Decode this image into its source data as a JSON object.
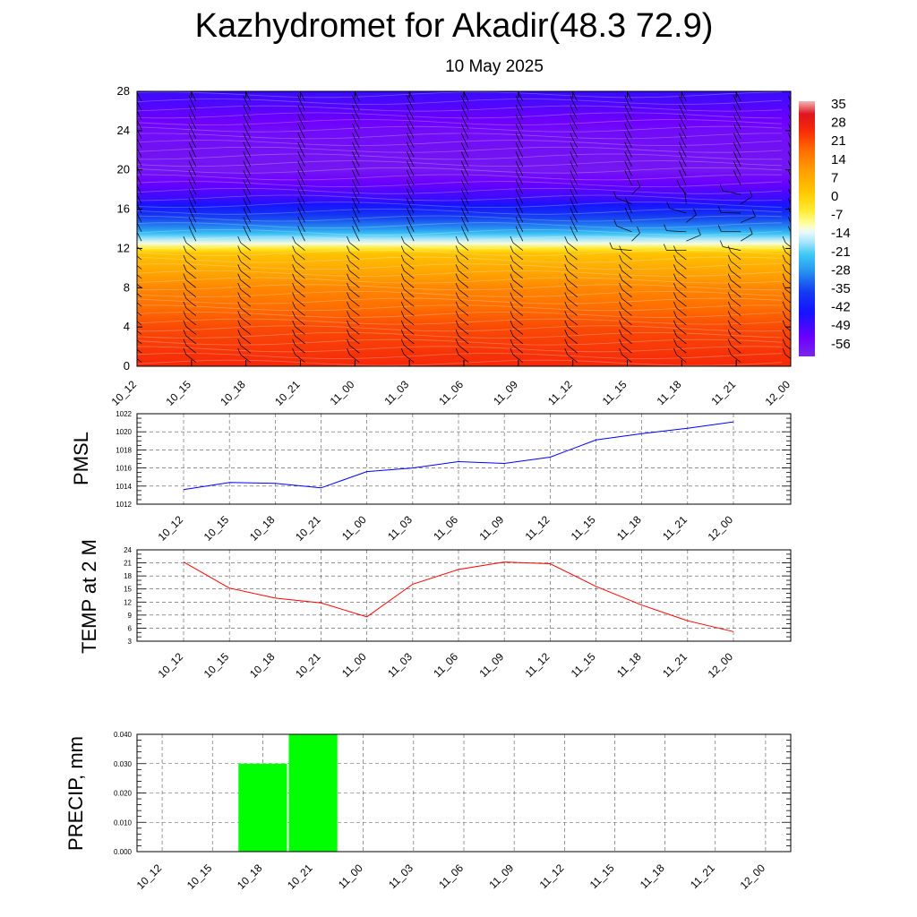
{
  "header": {
    "title": "Kazhydromet for Akadir(48.3 72.9)",
    "subtitle": "10 May 2025"
  },
  "colors": {
    "pmsl_line": "#0000ff",
    "temp_line": "#ff0000",
    "precip_bar": "#00ff00",
    "grid": "#555555"
  },
  "chart_data": [
    {
      "type": "heatmap",
      "title": "",
      "x_tick_labels": [
        "10_12",
        "10_15",
        "10_18",
        "10_21",
        "11_00",
        "11_03",
        "11_06",
        "11_09",
        "11_12",
        "11_15",
        "11_18",
        "11_21",
        "12_00"
      ],
      "y_tick_labels": [
        "0",
        "4",
        "8",
        "12",
        "16",
        "20",
        "24",
        "28"
      ],
      "ylim": [
        0,
        28
      ],
      "colorbar": {
        "labels": [
          "35",
          "28",
          "21",
          "14",
          "7",
          "0",
          "-7",
          "-14",
          "-21",
          "-28",
          "-35",
          "-42",
          "-49",
          "-56"
        ],
        "range": [
          -63,
          35
        ]
      },
      "profile": [
        {
          "level": 0,
          "value": 24
        },
        {
          "level": 4,
          "value": 20
        },
        {
          "level": 8,
          "value": 12
        },
        {
          "level": 11.5,
          "value": 1
        },
        {
          "level": 12.5,
          "value": -14
        },
        {
          "level": 14,
          "value": -30
        },
        {
          "level": 17,
          "value": -50
        },
        {
          "level": 20,
          "value": -60
        },
        {
          "level": 24,
          "value": -58
        },
        {
          "level": 28,
          "value": -50
        }
      ],
      "overlay": "wind barbs"
    },
    {
      "type": "line",
      "ylabel": "PMSL",
      "x": [
        "10_12",
        "10_15",
        "10_18",
        "10_21",
        "11_00",
        "11_03",
        "11_06",
        "11_09",
        "11_12",
        "11_15",
        "11_18",
        "11_21",
        "12_00"
      ],
      "series": [
        {
          "values": [
            1013.6,
            1014.4,
            1014.3,
            1013.8,
            1015.6,
            1016.0,
            1016.7,
            1016.5,
            1017.2,
            1019.1,
            1019.8,
            1020.4,
            1021.1
          ]
        }
      ],
      "y_tick_labels": [
        "1012",
        "1014",
        "1016",
        "1018",
        "1020",
        "1022"
      ],
      "ylim": [
        1012,
        1022
      ],
      "grid": true
    },
    {
      "type": "line",
      "ylabel": "TEMP at 2 M",
      "x": [
        "10_12",
        "10_15",
        "10_18",
        "10_21",
        "11_00",
        "11_03",
        "11_06",
        "11_09",
        "11_12",
        "11_15",
        "11_18",
        "11_21",
        "12_00"
      ],
      "series": [
        {
          "values": [
            21.2,
            15.2,
            12.9,
            11.8,
            8.6,
            16.1,
            19.5,
            21.2,
            20.8,
            15.6,
            11.3,
            7.7,
            5.2
          ]
        }
      ],
      "y_tick_labels": [
        "3",
        "6",
        "9",
        "12",
        "15",
        "18",
        "21",
        "24"
      ],
      "ylim": [
        3,
        24
      ],
      "grid": true
    },
    {
      "type": "bar",
      "ylabel": "PRECIP, mm",
      "categories": [
        "10_12",
        "10_15",
        "10_18",
        "10_21",
        "11_00",
        "11_03",
        "11_06",
        "11_09",
        "11_12",
        "11_15",
        "11_18",
        "11_21",
        "12_00"
      ],
      "values": [
        0,
        0,
        0.03,
        0.04,
        0,
        0,
        0,
        0,
        0,
        0,
        0,
        0,
        0
      ],
      "y_tick_labels": [
        "0.000",
        "0.010",
        "0.020",
        "0.030",
        "0.040"
      ],
      "ylim": [
        0,
        0.04
      ],
      "grid": true
    }
  ]
}
